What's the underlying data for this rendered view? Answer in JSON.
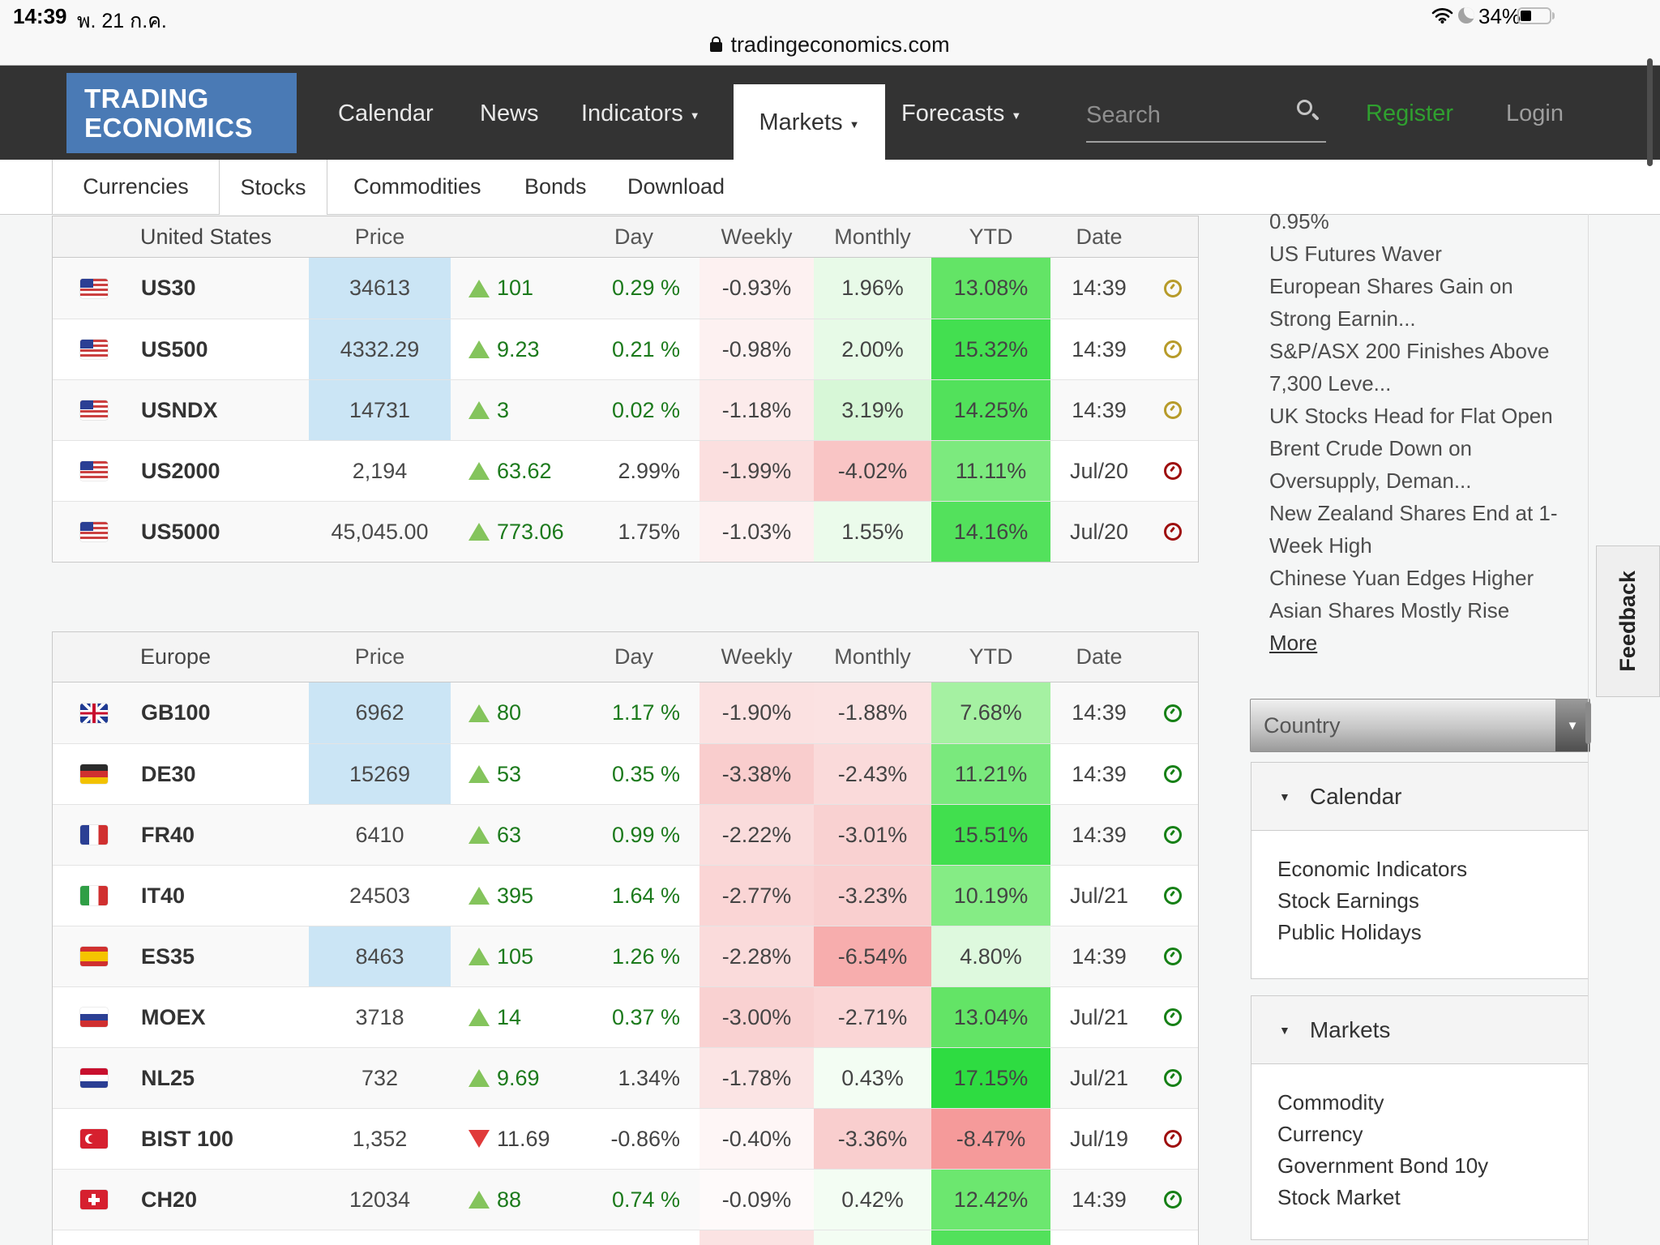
{
  "status_bar": {
    "time": "14:39",
    "date": "พ. 21 ก.ค.",
    "battery_percent": "34%"
  },
  "url_bar": {
    "domain": "tradingeconomics.com"
  },
  "navbar": {
    "logo_line1": "TRADING",
    "logo_line2": "ECONOMICS",
    "menu": [
      {
        "label": "Calendar",
        "caret": false
      },
      {
        "label": "News",
        "caret": false
      },
      {
        "label": "Indicators",
        "caret": true
      },
      {
        "label": "Markets",
        "caret": true,
        "active": true
      },
      {
        "label": "Forecasts",
        "caret": true
      }
    ],
    "search_placeholder": "Search",
    "register_label": "Register",
    "login_label": "Login"
  },
  "subnav": {
    "items": [
      {
        "label": "Currencies"
      },
      {
        "label": "Stocks",
        "active": true
      },
      {
        "label": "Commodities"
      },
      {
        "label": "Bonds"
      },
      {
        "label": "Download"
      }
    ]
  },
  "tables": [
    {
      "title": "United States",
      "columns": [
        "Price",
        "Day",
        "Weekly",
        "Monthly",
        "YTD",
        "Date"
      ],
      "rows": [
        {
          "flag": "us",
          "name": "US30",
          "price": "34613",
          "price_highlight": true,
          "direction": "up",
          "change": "101",
          "day": "0.29 %",
          "day_live": true,
          "weekly": "-0.93%",
          "weekly_bg": "#fdf1f1",
          "monthly": "1.96%",
          "monthly_bg": "#e8fae8",
          "ytd": "13.08%",
          "ytd_bg": "#63e466",
          "date": "14:39",
          "clock": "gold"
        },
        {
          "flag": "us",
          "name": "US500",
          "price": "4332.29",
          "price_highlight": true,
          "direction": "up",
          "change": "9.23",
          "day": "0.21 %",
          "day_live": true,
          "weekly": "-0.98%",
          "weekly_bg": "#fdf1f1",
          "monthly": "2.00%",
          "monthly_bg": "#e7fae7",
          "ytd": "15.32%",
          "ytd_bg": "#43df50",
          "date": "14:39",
          "clock": "gold"
        },
        {
          "flag": "us",
          "name": "USNDX",
          "price": "14731",
          "price_highlight": true,
          "direction": "up",
          "change": "3",
          "day": "0.02 %",
          "day_live": true,
          "weekly": "-1.18%",
          "weekly_bg": "#fcebeb",
          "monthly": "3.19%",
          "monthly_bg": "#d7f7d7",
          "ytd": "14.25%",
          "ytd_bg": "#52e15b",
          "date": "14:39",
          "clock": "gold"
        },
        {
          "flag": "us",
          "name": "US2000",
          "price": "2,194",
          "price_highlight": false,
          "direction": "up",
          "change": "63.62",
          "day": "2.99%",
          "day_live": false,
          "weekly": "-1.99%",
          "weekly_bg": "#fbdfdf",
          "monthly": "-4.02%",
          "monthly_bg": "#f9c5c5",
          "ytd": "11.11%",
          "ytd_bg": "#7cea7e",
          "date": "Jul/20",
          "clock": "red"
        },
        {
          "flag": "us",
          "name": "US5000",
          "price": "45,045.00",
          "price_highlight": false,
          "direction": "up",
          "change": "773.06",
          "day": "1.75%",
          "day_live": false,
          "weekly": "-1.03%",
          "weekly_bg": "#fdf0f0",
          "monthly": "1.55%",
          "monthly_bg": "#ebfbeb",
          "ytd": "14.16%",
          "ytd_bg": "#53e15c",
          "date": "Jul/20",
          "clock": "red"
        }
      ]
    },
    {
      "title": "Europe",
      "columns": [
        "Price",
        "Day",
        "Weekly",
        "Monthly",
        "YTD",
        "Date"
      ],
      "rows": [
        {
          "flag": "gb",
          "name": "GB100",
          "price": "6962",
          "price_highlight": true,
          "direction": "up",
          "change": "80",
          "day": "1.17 %",
          "day_live": true,
          "weekly": "-1.90%",
          "weekly_bg": "#fbe1e1",
          "monthly": "-1.88%",
          "monthly_bg": "#fbe2e2",
          "ytd": "7.68%",
          "ytd_bg": "#a5f1a2",
          "date": "14:39",
          "clock": "green"
        },
        {
          "flag": "de",
          "name": "DE30",
          "price": "15269",
          "price_highlight": true,
          "direction": "up",
          "change": "53",
          "day": "0.35 %",
          "day_live": true,
          "weekly": "-3.38%",
          "weekly_bg": "#f9cdcd",
          "monthly": "-2.43%",
          "monthly_bg": "#fadada",
          "ytd": "11.21%",
          "ytd_bg": "#7ae97d",
          "date": "14:39",
          "clock": "green"
        },
        {
          "flag": "fr",
          "name": "FR40",
          "price": "6410",
          "price_highlight": false,
          "direction": "up",
          "change": "63",
          "day": "0.99 %",
          "day_live": true,
          "weekly": "-2.22%",
          "weekly_bg": "#fadcdc",
          "monthly": "-3.01%",
          "monthly_bg": "#f9d1d1",
          "ytd": "15.51%",
          "ytd_bg": "#41df4e",
          "date": "14:39",
          "clock": "green"
        },
        {
          "flag": "it",
          "name": "IT40",
          "price": "24503",
          "price_highlight": false,
          "direction": "up",
          "change": "395",
          "day": "1.64 %",
          "day_live": true,
          "weekly": "-2.77%",
          "weekly_bg": "#fad5d5",
          "monthly": "-3.23%",
          "monthly_bg": "#f9cfcf",
          "ytd": "10.19%",
          "ytd_bg": "#85ec85",
          "date": "Jul/21",
          "clock": "green"
        },
        {
          "flag": "es",
          "name": "ES35",
          "price": "8463",
          "price_highlight": true,
          "direction": "up",
          "change": "105",
          "day": "1.26 %",
          "day_live": true,
          "weekly": "-2.28%",
          "weekly_bg": "#fadbdb",
          "monthly": "-6.54%",
          "monthly_bg": "#f7adad",
          "ytd": "4.80%",
          "ytd_bg": "#def9de",
          "date": "14:39",
          "clock": "green"
        },
        {
          "flag": "ru",
          "name": "MOEX",
          "price": "3718",
          "price_highlight": false,
          "direction": "up",
          "change": "14",
          "day": "0.37 %",
          "day_live": true,
          "weekly": "-3.00%",
          "weekly_bg": "#f9d1d1",
          "monthly": "-2.71%",
          "monthly_bg": "#fad6d6",
          "ytd": "13.04%",
          "ytd_bg": "#63e466",
          "date": "Jul/21",
          "clock": "green"
        },
        {
          "flag": "nl",
          "name": "NL25",
          "price": "732",
          "price_highlight": false,
          "direction": "up",
          "change": "9.69",
          "day": "1.34%",
          "day_live": false,
          "weekly": "-1.78%",
          "weekly_bg": "#fbe4e4",
          "monthly": "0.43%",
          "monthly_bg": "#f3fdf3",
          "ytd": "17.15%",
          "ytd_bg": "#2edc41",
          "date": "Jul/21",
          "clock": "green"
        },
        {
          "flag": "tr",
          "name": "BIST 100",
          "price": "1,352",
          "price_highlight": false,
          "direction": "down",
          "change": "11.69",
          "day": "-0.86%",
          "day_live": false,
          "weekly": "-0.40%",
          "weekly_bg": "#fef6f6",
          "monthly": "-3.36%",
          "monthly_bg": "#f9cece",
          "ytd": "-8.47%",
          "ytd_bg": "#f59a9a",
          "date": "Jul/19",
          "clock": "red"
        },
        {
          "flag": "ch",
          "name": "CH20",
          "price": "12034",
          "price_highlight": false,
          "direction": "up",
          "change": "88",
          "day": "0.74 %",
          "day_live": true,
          "weekly": "-0.09%",
          "weekly_bg": "#fefafa",
          "monthly": "0.42%",
          "monthly_bg": "#f3fdf3",
          "ytd": "12.42%",
          "ytd_bg": "#6ce76f",
          "date": "14:39",
          "clock": "green"
        },
        {
          "flag": "se",
          "partial": true,
          "weekly_bg": "#fbe3e3",
          "monthly_bg": "#f3fdf3",
          "ytd_bg": "#52e15b"
        }
      ]
    }
  ],
  "sidebar": {
    "news": [
      {
        "lines": [
          "0.95%"
        ]
      },
      {
        "lines": [
          "US Futures Waver"
        ]
      },
      {
        "lines": [
          "European Shares Gain on",
          "Strong Earnin..."
        ]
      },
      {
        "lines": [
          "S&P/ASX 200 Finishes Above",
          "7,300 Leve..."
        ]
      },
      {
        "lines": [
          "UK Stocks Head for Flat Open"
        ]
      },
      {
        "lines": [
          "Brent Crude Down on",
          "Oversupply, Deman..."
        ]
      },
      {
        "lines": [
          "New Zealand Shares End at 1-",
          "Week High"
        ]
      },
      {
        "lines": [
          "Chinese Yuan Edges Higher"
        ]
      },
      {
        "lines": [
          "Asian Shares Mostly Rise"
        ]
      }
    ],
    "more_label": "More",
    "country_dropdown_label": "Country",
    "panels": [
      {
        "title": "Calendar",
        "links": [
          "Economic Indicators",
          "Stock Earnings",
          "Public Holidays"
        ]
      },
      {
        "title": "Markets",
        "links": [
          "Commodity",
          "Currency",
          "Government Bond 10y",
          "Stock Market"
        ]
      }
    ]
  },
  "feedback_label": "Feedback"
}
